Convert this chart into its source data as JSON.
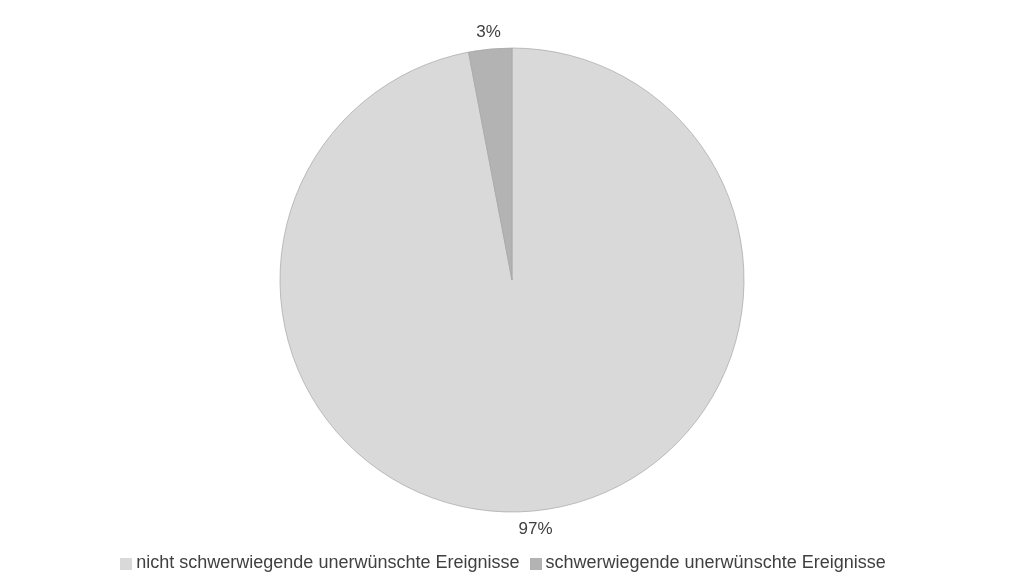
{
  "chart_data": {
    "type": "pie",
    "categories": [
      "nicht schwerwiegende unerwünschte Ereignisse",
      "schwerwiegende unerwünschte Ereignisse"
    ],
    "values": [
      97,
      3
    ],
    "value_labels": [
      "97%",
      "3%"
    ],
    "colors": [
      "#d9d9d9",
      "#b3b3b3"
    ],
    "legend": "bottom"
  }
}
